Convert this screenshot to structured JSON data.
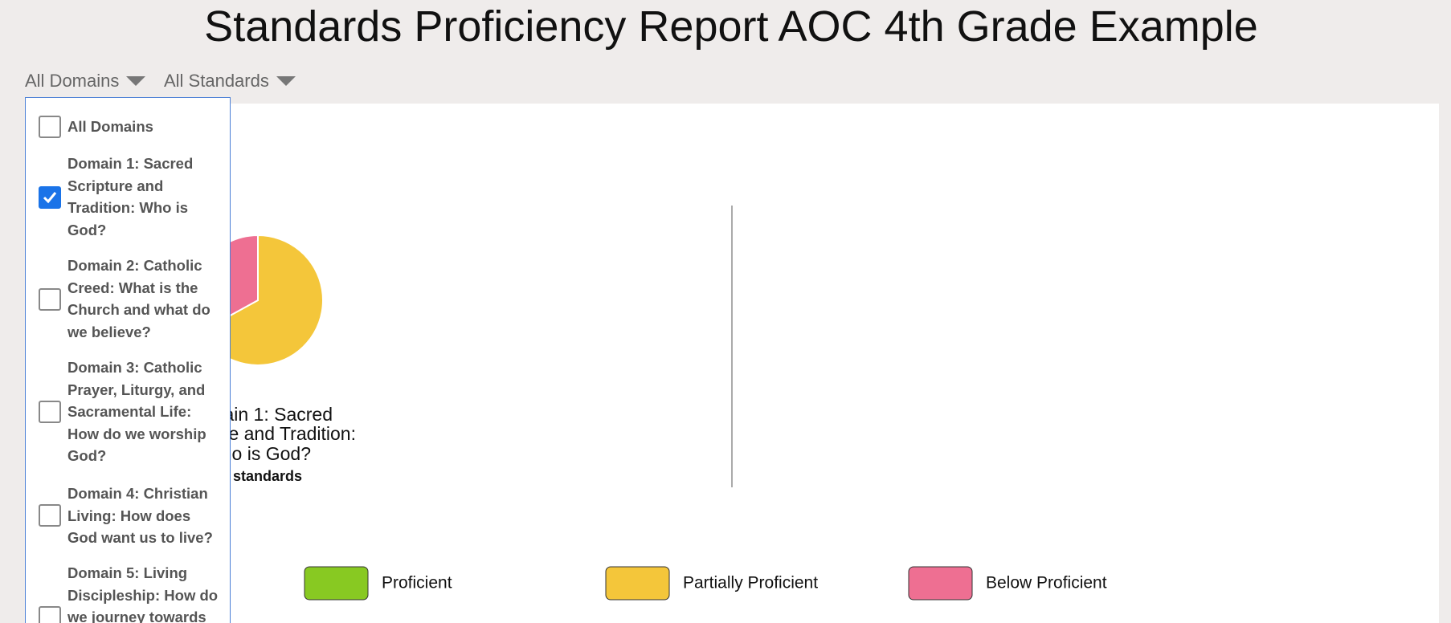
{
  "header": {
    "title": "Standards Proficiency Report AOC 4th Grade Example"
  },
  "filters": [
    {
      "label": "All Domains"
    },
    {
      "label": "All Standards"
    }
  ],
  "dropdown": {
    "items": [
      {
        "label": "All Domains",
        "checked": false
      },
      {
        "label": "Domain 1: Sacred Scripture and Tradition: Who is God?",
        "checked": true
      },
      {
        "label": "Domain 2: Catholic Creed: What is the Church and what do we believe?",
        "checked": false
      },
      {
        "label": "Domain 3: Catholic Prayer, Liturgy, and Sacramental Life: How do we worship God?",
        "checked": false
      },
      {
        "label": "Domain 4: Christian Living: How does God want us to live?",
        "checked": false
      },
      {
        "label": "Domain 5: Living Discipleship: How do we journey towards",
        "checked": false
      }
    ]
  },
  "chart_data": {
    "type": "pie",
    "categories": [
      "Proficient",
      "Partially Proficient",
      "Below Proficient"
    ],
    "values": [
      0,
      67,
      33
    ],
    "colors": [
      "#88c922",
      "#f4c63a",
      "#ee6f92"
    ],
    "caption_lines": [
      "ain 1: Sacred",
      "e and Tradition:",
      "ho is God?"
    ],
    "caption_note": "standards"
  }
}
